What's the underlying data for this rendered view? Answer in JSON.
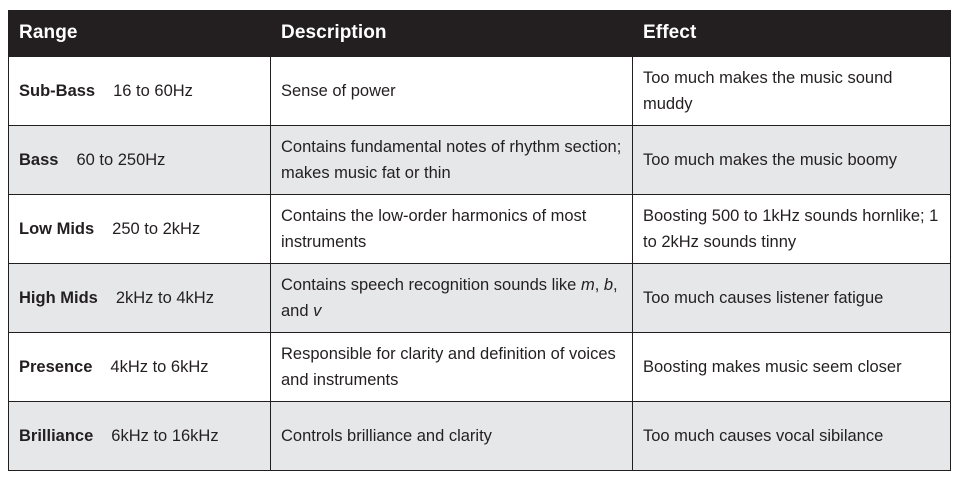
{
  "header": {
    "range": "Range",
    "description": "Description",
    "effect": "Effect"
  },
  "rows": [
    {
      "name": "Sub-Bass",
      "range": "16 to 60Hz",
      "description": "Sense of power",
      "effect": "Too much makes the music sound muddy"
    },
    {
      "name": "Bass",
      "range": "60 to 250Hz",
      "description": "Contains fundamental notes of rhythm section; makes music fat or thin",
      "effect": "Too much makes the music boomy"
    },
    {
      "name": "Low Mids",
      "range": "250 to 2kHz",
      "description": "Contains the low-order harmonics of most instruments",
      "effect": "Boosting 500 to 1kHz sounds hornlike; 1 to 2kHz sounds tinny"
    },
    {
      "name": "High Mids",
      "range": "2kHz to 4kHz",
      "description_prefix": "Contains speech recognition sounds like ",
      "description_letter_m": "m",
      "description_sep1": ", ",
      "description_letter_b": "b",
      "description_sep2": ", and ",
      "description_letter_v": "v",
      "effect": "Too much causes listener fatigue"
    },
    {
      "name": "Presence",
      "range": "4kHz to 6kHz",
      "description": "Responsible for clarity and definition of voices and instruments",
      "effect": "Boosting makes music seem closer"
    },
    {
      "name": "Brilliance",
      "range": "6kHz to 16kHz",
      "description": "Controls brilliance and clarity",
      "effect": "Too much causes vocal sibilance"
    }
  ]
}
